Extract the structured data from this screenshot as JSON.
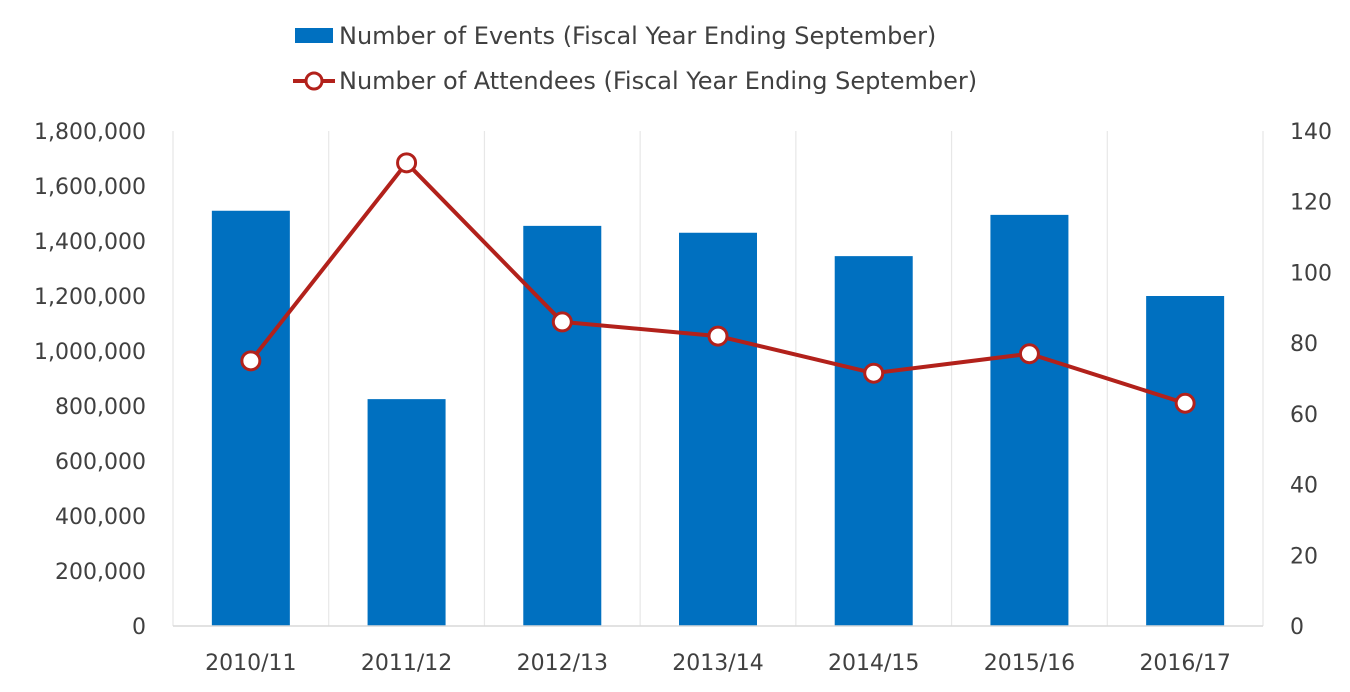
{
  "chart_data": {
    "type": "bar+line",
    "categories": [
      "2010/11",
      "2011/12",
      "2012/13",
      "2013/14",
      "2014/15",
      "2015/16",
      "2016/17"
    ],
    "series": [
      {
        "name": "Number of Events (Fiscal Year Ending September)",
        "type": "bar",
        "axis": "left",
        "color": "#0070C0",
        "values": [
          1510000,
          825000,
          1455000,
          1430000,
          1345000,
          1495000,
          1200000
        ]
      },
      {
        "name": "Number of Attendees (Fiscal Year Ending September)",
        "type": "line",
        "axis": "right",
        "color": "#B2211B",
        "marker": "hollow-circle",
        "values": [
          75,
          131,
          86,
          82,
          71.5,
          77,
          63
        ]
      }
    ],
    "y_left": {
      "lim": [
        0,
        1800000
      ],
      "ticks": [
        0,
        200000,
        400000,
        600000,
        800000,
        1000000,
        1200000,
        1400000,
        1600000,
        1800000
      ],
      "tick_labels": [
        "0",
        "200,000",
        "400,000",
        "600,000",
        "800,000",
        "1,000,000",
        "1,200,000",
        "1,400,000",
        "1,600,000",
        "1,800,000"
      ]
    },
    "y_right": {
      "lim": [
        0,
        140
      ],
      "ticks": [
        0,
        20,
        40,
        60,
        80,
        100,
        120,
        140
      ],
      "tick_labels": [
        "0",
        "20",
        "40",
        "60",
        "80",
        "100",
        "120",
        "140"
      ]
    },
    "grid": "vertical",
    "legend_position": "top-center"
  }
}
